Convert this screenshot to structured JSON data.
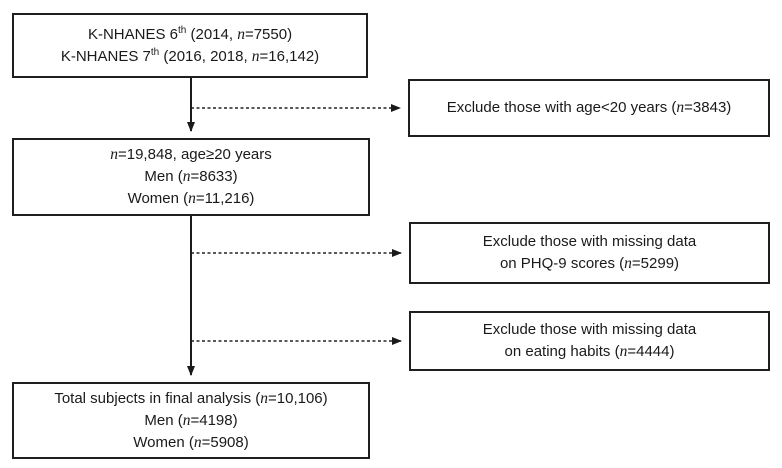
{
  "figure": {
    "type": "flowchart",
    "colors": {
      "border": "#1f1f1f",
      "text": "#1a1a1a",
      "background": "#ffffff",
      "arrow": "#1a1a1a"
    },
    "boxes": {
      "source": {
        "lines": [
          [
            {
              "t": "K-NHANES 6"
            },
            {
              "t": "th",
              "sup": true
            },
            {
              "t": " (2014, "
            },
            {
              "t": "n",
              "i": true
            },
            {
              "t": "=7550)"
            }
          ],
          [
            {
              "t": "K-NHANES 7"
            },
            {
              "t": "th",
              "sup": true
            },
            {
              "t": " (2016, 2018, "
            },
            {
              "t": "n",
              "i": true
            },
            {
              "t": "=16,142)"
            }
          ]
        ]
      },
      "exclude_age": {
        "lines": [
          [
            {
              "t": "Exclude those with age<20 years ("
            },
            {
              "t": "n",
              "i": true
            },
            {
              "t": "=3843)"
            }
          ]
        ]
      },
      "age_filtered": {
        "lines": [
          [
            {
              "t": "n",
              "i": true
            },
            {
              "t": "=19,848, age≥20 years"
            }
          ],
          [
            {
              "t": "Men ("
            },
            {
              "t": "n",
              "i": true
            },
            {
              "t": "=8633)"
            }
          ],
          [
            {
              "t": "Women ("
            },
            {
              "t": "n",
              "i": true
            },
            {
              "t": "=11,216)"
            }
          ]
        ]
      },
      "exclude_phq9": {
        "lines": [
          [
            {
              "t": "Exclude those with missing data"
            }
          ],
          [
            {
              "t": "on PHQ-9 scores ("
            },
            {
              "t": "n",
              "i": true
            },
            {
              "t": "=5299)"
            }
          ]
        ]
      },
      "exclude_eating": {
        "lines": [
          [
            {
              "t": "Exclude those with missing data"
            }
          ],
          [
            {
              "t": "on eating habits ("
            },
            {
              "t": "n",
              "i": true
            },
            {
              "t": "=4444)"
            }
          ]
        ]
      },
      "final": {
        "lines": [
          [
            {
              "t": "Total subjects in final analysis ("
            },
            {
              "t": "n",
              "i": true
            },
            {
              "t": "=10,106)"
            }
          ],
          [
            {
              "t": "Men ("
            },
            {
              "t": "n",
              "i": true
            },
            {
              "t": "=4198)"
            }
          ],
          [
            {
              "t": "Women ("
            },
            {
              "t": "n",
              "i": true
            },
            {
              "t": "=5908)"
            }
          ]
        ]
      }
    }
  }
}
